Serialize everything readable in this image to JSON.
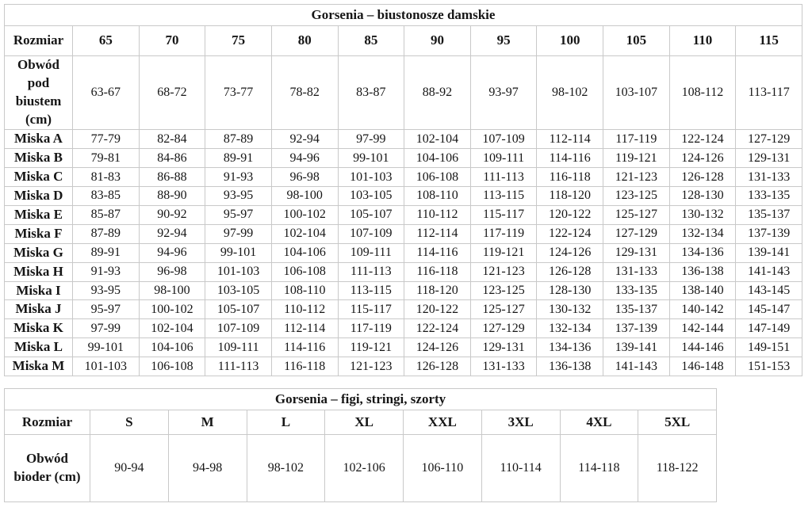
{
  "bras_table": {
    "title": "Gorsenia – biustonosze damskie",
    "size_label": "Rozmiar",
    "sizes": [
      "65",
      "70",
      "75",
      "80",
      "85",
      "90",
      "95",
      "100",
      "105",
      "110",
      "115"
    ],
    "underbust_label": "Obwód pod biustem (cm)",
    "underbust": [
      "63-67",
      "68-72",
      "73-77",
      "78-82",
      "83-87",
      "88-92",
      "93-97",
      "98-102",
      "103-107",
      "108-112",
      "113-117"
    ],
    "cup_rows": [
      {
        "label": "Miska A",
        "values": [
          "77-79",
          "82-84",
          "87-89",
          "92-94",
          "97-99",
          "102-104",
          "107-109",
          "112-114",
          "117-119",
          "122-124",
          "127-129"
        ]
      },
      {
        "label": "Miska B",
        "values": [
          "79-81",
          "84-86",
          "89-91",
          "94-96",
          "99-101",
          "104-106",
          "109-111",
          "114-116",
          "119-121",
          "124-126",
          "129-131"
        ]
      },
      {
        "label": "Miska C",
        "values": [
          "81-83",
          "86-88",
          "91-93",
          "96-98",
          "101-103",
          "106-108",
          "111-113",
          "116-118",
          "121-123",
          "126-128",
          "131-133"
        ]
      },
      {
        "label": "Miska D",
        "values": [
          "83-85",
          "88-90",
          "93-95",
          "98-100",
          "103-105",
          "108-110",
          "113-115",
          "118-120",
          "123-125",
          "128-130",
          "133-135"
        ]
      },
      {
        "label": "Miska E",
        "values": [
          "85-87",
          "90-92",
          "95-97",
          "100-102",
          "105-107",
          "110-112",
          "115-117",
          "120-122",
          "125-127",
          "130-132",
          "135-137"
        ]
      },
      {
        "label": "Miska F",
        "values": [
          "87-89",
          "92-94",
          "97-99",
          "102-104",
          "107-109",
          "112-114",
          "117-119",
          "122-124",
          "127-129",
          "132-134",
          "137-139"
        ]
      },
      {
        "label": "Miska G",
        "values": [
          "89-91",
          "94-96",
          "99-101",
          "104-106",
          "109-111",
          "114-116",
          "119-121",
          "124-126",
          "129-131",
          "134-136",
          "139-141"
        ]
      },
      {
        "label": "Miska H",
        "values": [
          "91-93",
          "96-98",
          "101-103",
          "106-108",
          "111-113",
          "116-118",
          "121-123",
          "126-128",
          "131-133",
          "136-138",
          "141-143"
        ]
      },
      {
        "label": "Miska I",
        "values": [
          "93-95",
          "98-100",
          "103-105",
          "108-110",
          "113-115",
          "118-120",
          "123-125",
          "128-130",
          "133-135",
          "138-140",
          "143-145"
        ]
      },
      {
        "label": "Miska J",
        "values": [
          "95-97",
          "100-102",
          "105-107",
          "110-112",
          "115-117",
          "120-122",
          "125-127",
          "130-132",
          "135-137",
          "140-142",
          "145-147"
        ]
      },
      {
        "label": "Miska K",
        "values": [
          "97-99",
          "102-104",
          "107-109",
          "112-114",
          "117-119",
          "122-124",
          "127-129",
          "132-134",
          "137-139",
          "142-144",
          "147-149"
        ]
      },
      {
        "label": "Miska L",
        "values": [
          "99-101",
          "104-106",
          "109-111",
          "114-116",
          "119-121",
          "124-126",
          "129-131",
          "134-136",
          "139-141",
          "144-146",
          "149-151"
        ]
      },
      {
        "label": "Miska M",
        "values": [
          "101-103",
          "106-108",
          "111-113",
          "116-118",
          "121-123",
          "126-128",
          "131-133",
          "136-138",
          "141-143",
          "146-148",
          "151-153"
        ]
      }
    ]
  },
  "briefs_table": {
    "title": "Gorsenia – figi, stringi, szorty",
    "size_label": "Rozmiar",
    "sizes": [
      "S",
      "M",
      "L",
      "XL",
      "XXL",
      "3XL",
      "4XL",
      "5XL"
    ],
    "hips_label": "Obwód bioder (cm)",
    "hips": [
      "90-94",
      "94-98",
      "98-102",
      "102-106",
      "106-110",
      "110-114",
      "114-118",
      "118-122"
    ]
  },
  "colors": {
    "border": "#c9c9c9",
    "text": "#161616",
    "background": "#ffffff"
  }
}
